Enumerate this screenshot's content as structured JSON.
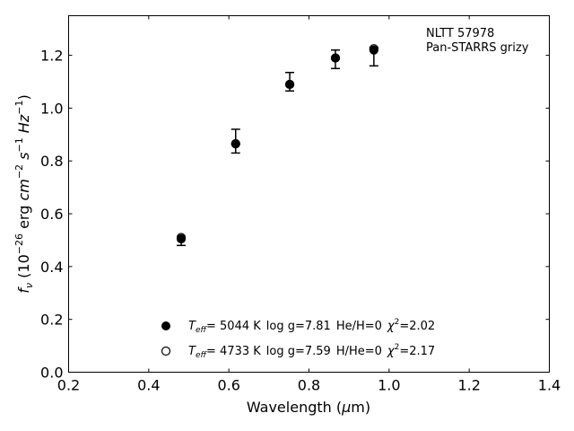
{
  "chart_data": {
    "type": "scatter",
    "title": "",
    "xlabel": "Wavelength (µm)",
    "ylabel": "f_ν (10^-26 erg cm^-2 s^-1 Hz^-1)",
    "xlim": [
      0.2,
      1.4
    ],
    "ylim": [
      0.0,
      1.35
    ],
    "x_ticks": [
      "0.2",
      "0.4",
      "0.6",
      "0.8",
      "1.0",
      "1.2",
      "1.4"
    ],
    "y_ticks": [
      "0.0",
      "0.2",
      "0.4",
      "0.6",
      "0.8",
      "1.0",
      "1.2"
    ],
    "grid": false,
    "annotation": [
      "NLTT 57978",
      "Pan-STARRS grizy"
    ],
    "observed": {
      "x": [
        0.481,
        0.617,
        0.752,
        0.866,
        0.962
      ],
      "y": [
        0.495,
        0.875,
        1.1,
        1.185,
        1.195
      ],
      "yerr": [
        0.015,
        0.045,
        0.035,
        0.035,
        0.035
      ]
    },
    "series": [
      {
        "name": "T_eff= 5044 K log g=7.81 He/H=0 χ²=2.02",
        "marker": "filled",
        "x": [
          0.481,
          0.617,
          0.752,
          0.866,
          0.962
        ],
        "y": [
          0.505,
          0.865,
          1.09,
          1.19,
          1.22
        ]
      },
      {
        "name": "T_eff= 4733 K log g=7.59 H/He=0 χ²=2.17",
        "marker": "open",
        "x": [
          0.481,
          0.617,
          0.752,
          0.866,
          0.962
        ],
        "y": [
          0.51,
          0.865,
          1.09,
          1.19,
          1.225
        ]
      }
    ],
    "legend": {
      "placement": "lower-center",
      "entries": [
        {
          "marker": "filled",
          "teff_label": "T",
          "teff_sub": "eff",
          "teff_value": "=  5044 K",
          "logg": "log g=7.81",
          "comp": "He/H=0",
          "chi_label": "χ",
          "chi_sup": "2",
          "chi_value": "=2.02"
        },
        {
          "marker": "open",
          "teff_label": "T",
          "teff_sub": "eff",
          "teff_value": "=  4733 K",
          "logg": "log g=7.59",
          "comp": "H/He=0",
          "chi_label": "χ",
          "chi_sup": "2",
          "chi_value": "=2.17"
        }
      ]
    }
  }
}
